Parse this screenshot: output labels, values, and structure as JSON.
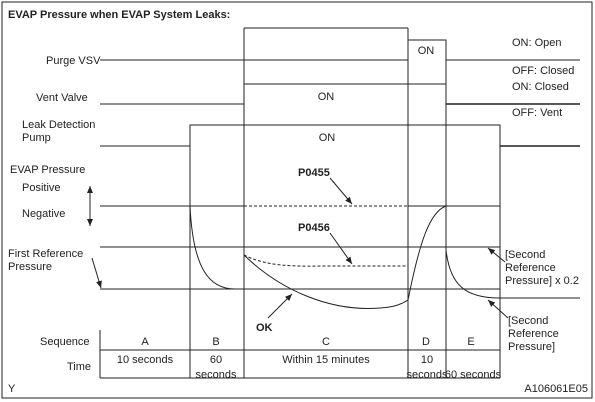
{
  "title": "EVAP Pressure when EVAP System Leaks:",
  "left_labels": {
    "purge_vsv": "Purge VSV",
    "vent_valve": "Vent Valve",
    "leak_detection_pump": [
      "Leak Detection",
      "Pump"
    ],
    "evap_pressure": "EVAP Pressure",
    "positive": "Positive",
    "negative": "Negative",
    "first_reference_pressure": [
      "First Reference",
      "Pressure"
    ],
    "sequence": "Sequence",
    "time": "Time"
  },
  "right_labels": {
    "on_open": "ON: Open",
    "off_closed": "OFF: Closed",
    "on_closed": "ON: Closed",
    "off_vent": "OFF: Vent"
  },
  "on_labels": [
    "ON",
    "ON",
    "ON"
  ],
  "codes": {
    "p0455": "P0455",
    "p0456": "P0456",
    "ok": "OK"
  },
  "second_reference_x02": [
    "[Second",
    "Reference",
    "Pressure] x 0.2"
  ],
  "second_reference": [
    "[Second",
    "Reference",
    "Pressure]"
  ],
  "sequence": [
    {
      "letter": "A",
      "time": [
        "10 seconds"
      ]
    },
    {
      "letter": "B",
      "time": [
        "60",
        "seconds"
      ]
    },
    {
      "letter": "C",
      "time": [
        "Within 15 minutes"
      ]
    },
    {
      "letter": "D",
      "time": [
        "10",
        "seconds"
      ]
    },
    {
      "letter": "E",
      "time": [
        "60 seconds"
      ]
    }
  ],
  "footer": {
    "left": "Y",
    "right": "A106061E05"
  }
}
